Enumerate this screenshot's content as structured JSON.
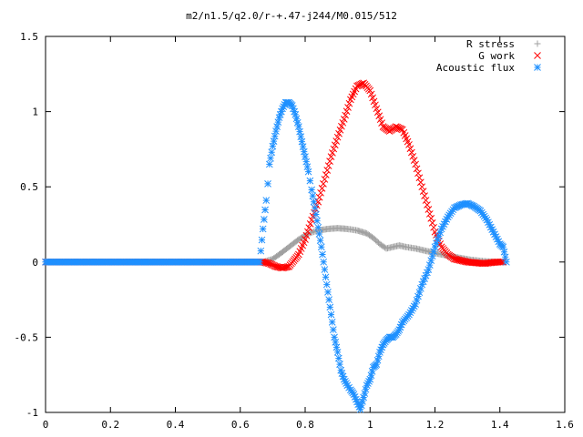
{
  "chart_data": {
    "type": "scatter",
    "title": "m2/n1.5/q2.0/r-+.47-j244/M0.015/512",
    "xlabel": "",
    "ylabel": "",
    "xlim": [
      0,
      1.6
    ],
    "ylim": [
      -1,
      1.5
    ],
    "x_ticks": [
      "0",
      "0.2",
      "0.4",
      "0.6",
      "0.8",
      "1",
      "1.2",
      "1.4",
      "1.6"
    ],
    "y_ticks": [
      "1.5",
      "1",
      "0.5",
      "0",
      "-0.5",
      "-1"
    ],
    "grid": false,
    "legend_position": "top-right",
    "series": [
      {
        "name": "R stress",
        "marker": "plus",
        "color": "#a0a0a0",
        "points": [
          [
            0,
            0
          ],
          [
            0.2,
            0
          ],
          [
            0.4,
            0
          ],
          [
            0.6,
            0
          ],
          [
            0.67,
            0
          ],
          [
            0.7,
            0.02
          ],
          [
            0.72,
            0.05
          ],
          [
            0.75,
            0.1
          ],
          [
            0.78,
            0.15
          ],
          [
            0.81,
            0.19
          ],
          [
            0.84,
            0.21
          ],
          [
            0.87,
            0.22
          ],
          [
            0.9,
            0.225
          ],
          [
            0.93,
            0.22
          ],
          [
            0.96,
            0.21
          ],
          [
            0.99,
            0.19
          ],
          [
            1.01,
            0.16
          ],
          [
            1.03,
            0.12
          ],
          [
            1.05,
            0.09
          ],
          [
            1.07,
            0.1
          ],
          [
            1.09,
            0.11
          ],
          [
            1.11,
            0.1
          ],
          [
            1.14,
            0.09
          ],
          [
            1.18,
            0.07
          ],
          [
            1.22,
            0.05
          ],
          [
            1.27,
            0.03
          ],
          [
            1.31,
            0.015
          ],
          [
            1.35,
            0.005
          ],
          [
            1.39,
            0
          ],
          [
            1.41,
            0
          ]
        ]
      },
      {
        "name": "G work",
        "marker": "cross",
        "color": "#ff0000",
        "points": [
          [
            0,
            0
          ],
          [
            0.2,
            0
          ],
          [
            0.4,
            0
          ],
          [
            0.6,
            0
          ],
          [
            0.67,
            0
          ],
          [
            0.69,
            -0.01
          ],
          [
            0.71,
            -0.03
          ],
          [
            0.73,
            -0.04
          ],
          [
            0.75,
            -0.03
          ],
          [
            0.78,
            0.05
          ],
          [
            0.8,
            0.15
          ],
          [
            0.82,
            0.28
          ],
          [
            0.84,
            0.4
          ],
          [
            0.86,
            0.55
          ],
          [
            0.88,
            0.7
          ],
          [
            0.9,
            0.83
          ],
          [
            0.92,
            0.95
          ],
          [
            0.94,
            1.08
          ],
          [
            0.96,
            1.17
          ],
          [
            0.98,
            1.19
          ],
          [
            1.0,
            1.14
          ],
          [
            1.02,
            1.02
          ],
          [
            1.04,
            0.9
          ],
          [
            1.06,
            0.87
          ],
          [
            1.08,
            0.9
          ],
          [
            1.1,
            0.88
          ],
          [
            1.12,
            0.78
          ],
          [
            1.14,
            0.65
          ],
          [
            1.16,
            0.5
          ],
          [
            1.18,
            0.35
          ],
          [
            1.2,
            0.2
          ],
          [
            1.22,
            0.1
          ],
          [
            1.24,
            0.05
          ],
          [
            1.26,
            0.02
          ],
          [
            1.3,
            0
          ],
          [
            1.35,
            -0.01
          ],
          [
            1.39,
            0
          ],
          [
            1.41,
            0
          ]
        ]
      },
      {
        "name": "Acoustic flux",
        "marker": "star",
        "color": "#1e90ff",
        "points": [
          [
            0,
            0
          ],
          [
            0.1,
            0
          ],
          [
            0.2,
            0
          ],
          [
            0.3,
            0
          ],
          [
            0.4,
            0
          ],
          [
            0.5,
            0
          ],
          [
            0.6,
            0
          ],
          [
            0.66,
            0
          ],
          [
            0.67,
            0.22
          ],
          [
            0.68,
            0.41
          ],
          [
            0.685,
            0.52
          ],
          [
            0.69,
            0.65
          ],
          [
            0.7,
            0.77
          ],
          [
            0.71,
            0.87
          ],
          [
            0.72,
            0.96
          ],
          [
            0.73,
            1.02
          ],
          [
            0.74,
            1.06
          ],
          [
            0.75,
            1.06
          ],
          [
            0.76,
            1.04
          ],
          [
            0.77,
            0.98
          ],
          [
            0.78,
            0.9
          ],
          [
            0.79,
            0.8
          ],
          [
            0.8,
            0.7
          ],
          [
            0.81,
            0.6
          ],
          [
            0.82,
            0.48
          ],
          [
            0.83,
            0.36
          ],
          [
            0.84,
            0.23
          ],
          [
            0.85,
            0.1
          ],
          [
            0.86,
            -0.05
          ],
          [
            0.87,
            -0.2
          ],
          [
            0.88,
            -0.35
          ],
          [
            0.89,
            -0.5
          ],
          [
            0.9,
            -0.6
          ],
          [
            0.91,
            -0.72
          ],
          [
            0.92,
            -0.78
          ],
          [
            0.93,
            -0.82
          ],
          [
            0.94,
            -0.85
          ],
          [
            0.95,
            -0.88
          ],
          [
            0.96,
            -0.93
          ],
          [
            0.97,
            -0.98
          ],
          [
            0.98,
            -0.9
          ],
          [
            0.99,
            -0.82
          ],
          [
            1.0,
            -0.78
          ],
          [
            1.01,
            -0.7
          ],
          [
            1.02,
            -0.68
          ],
          [
            1.03,
            -0.6
          ],
          [
            1.04,
            -0.55
          ],
          [
            1.05,
            -0.52
          ],
          [
            1.06,
            -0.5
          ],
          [
            1.07,
            -0.5
          ],
          [
            1.08,
            -0.48
          ],
          [
            1.09,
            -0.45
          ],
          [
            1.1,
            -0.4
          ],
          [
            1.12,
            -0.35
          ],
          [
            1.14,
            -0.28
          ],
          [
            1.16,
            -0.15
          ],
          [
            1.18,
            -0.05
          ],
          [
            1.2,
            0.1
          ],
          [
            1.22,
            0.22
          ],
          [
            1.24,
            0.3
          ],
          [
            1.26,
            0.36
          ],
          [
            1.28,
            0.38
          ],
          [
            1.3,
            0.39
          ],
          [
            1.32,
            0.37
          ],
          [
            1.34,
            0.34
          ],
          [
            1.36,
            0.28
          ],
          [
            1.38,
            0.2
          ],
          [
            1.4,
            0.12
          ],
          [
            1.41,
            0.1
          ],
          [
            1.42,
            0
          ]
        ]
      }
    ]
  }
}
